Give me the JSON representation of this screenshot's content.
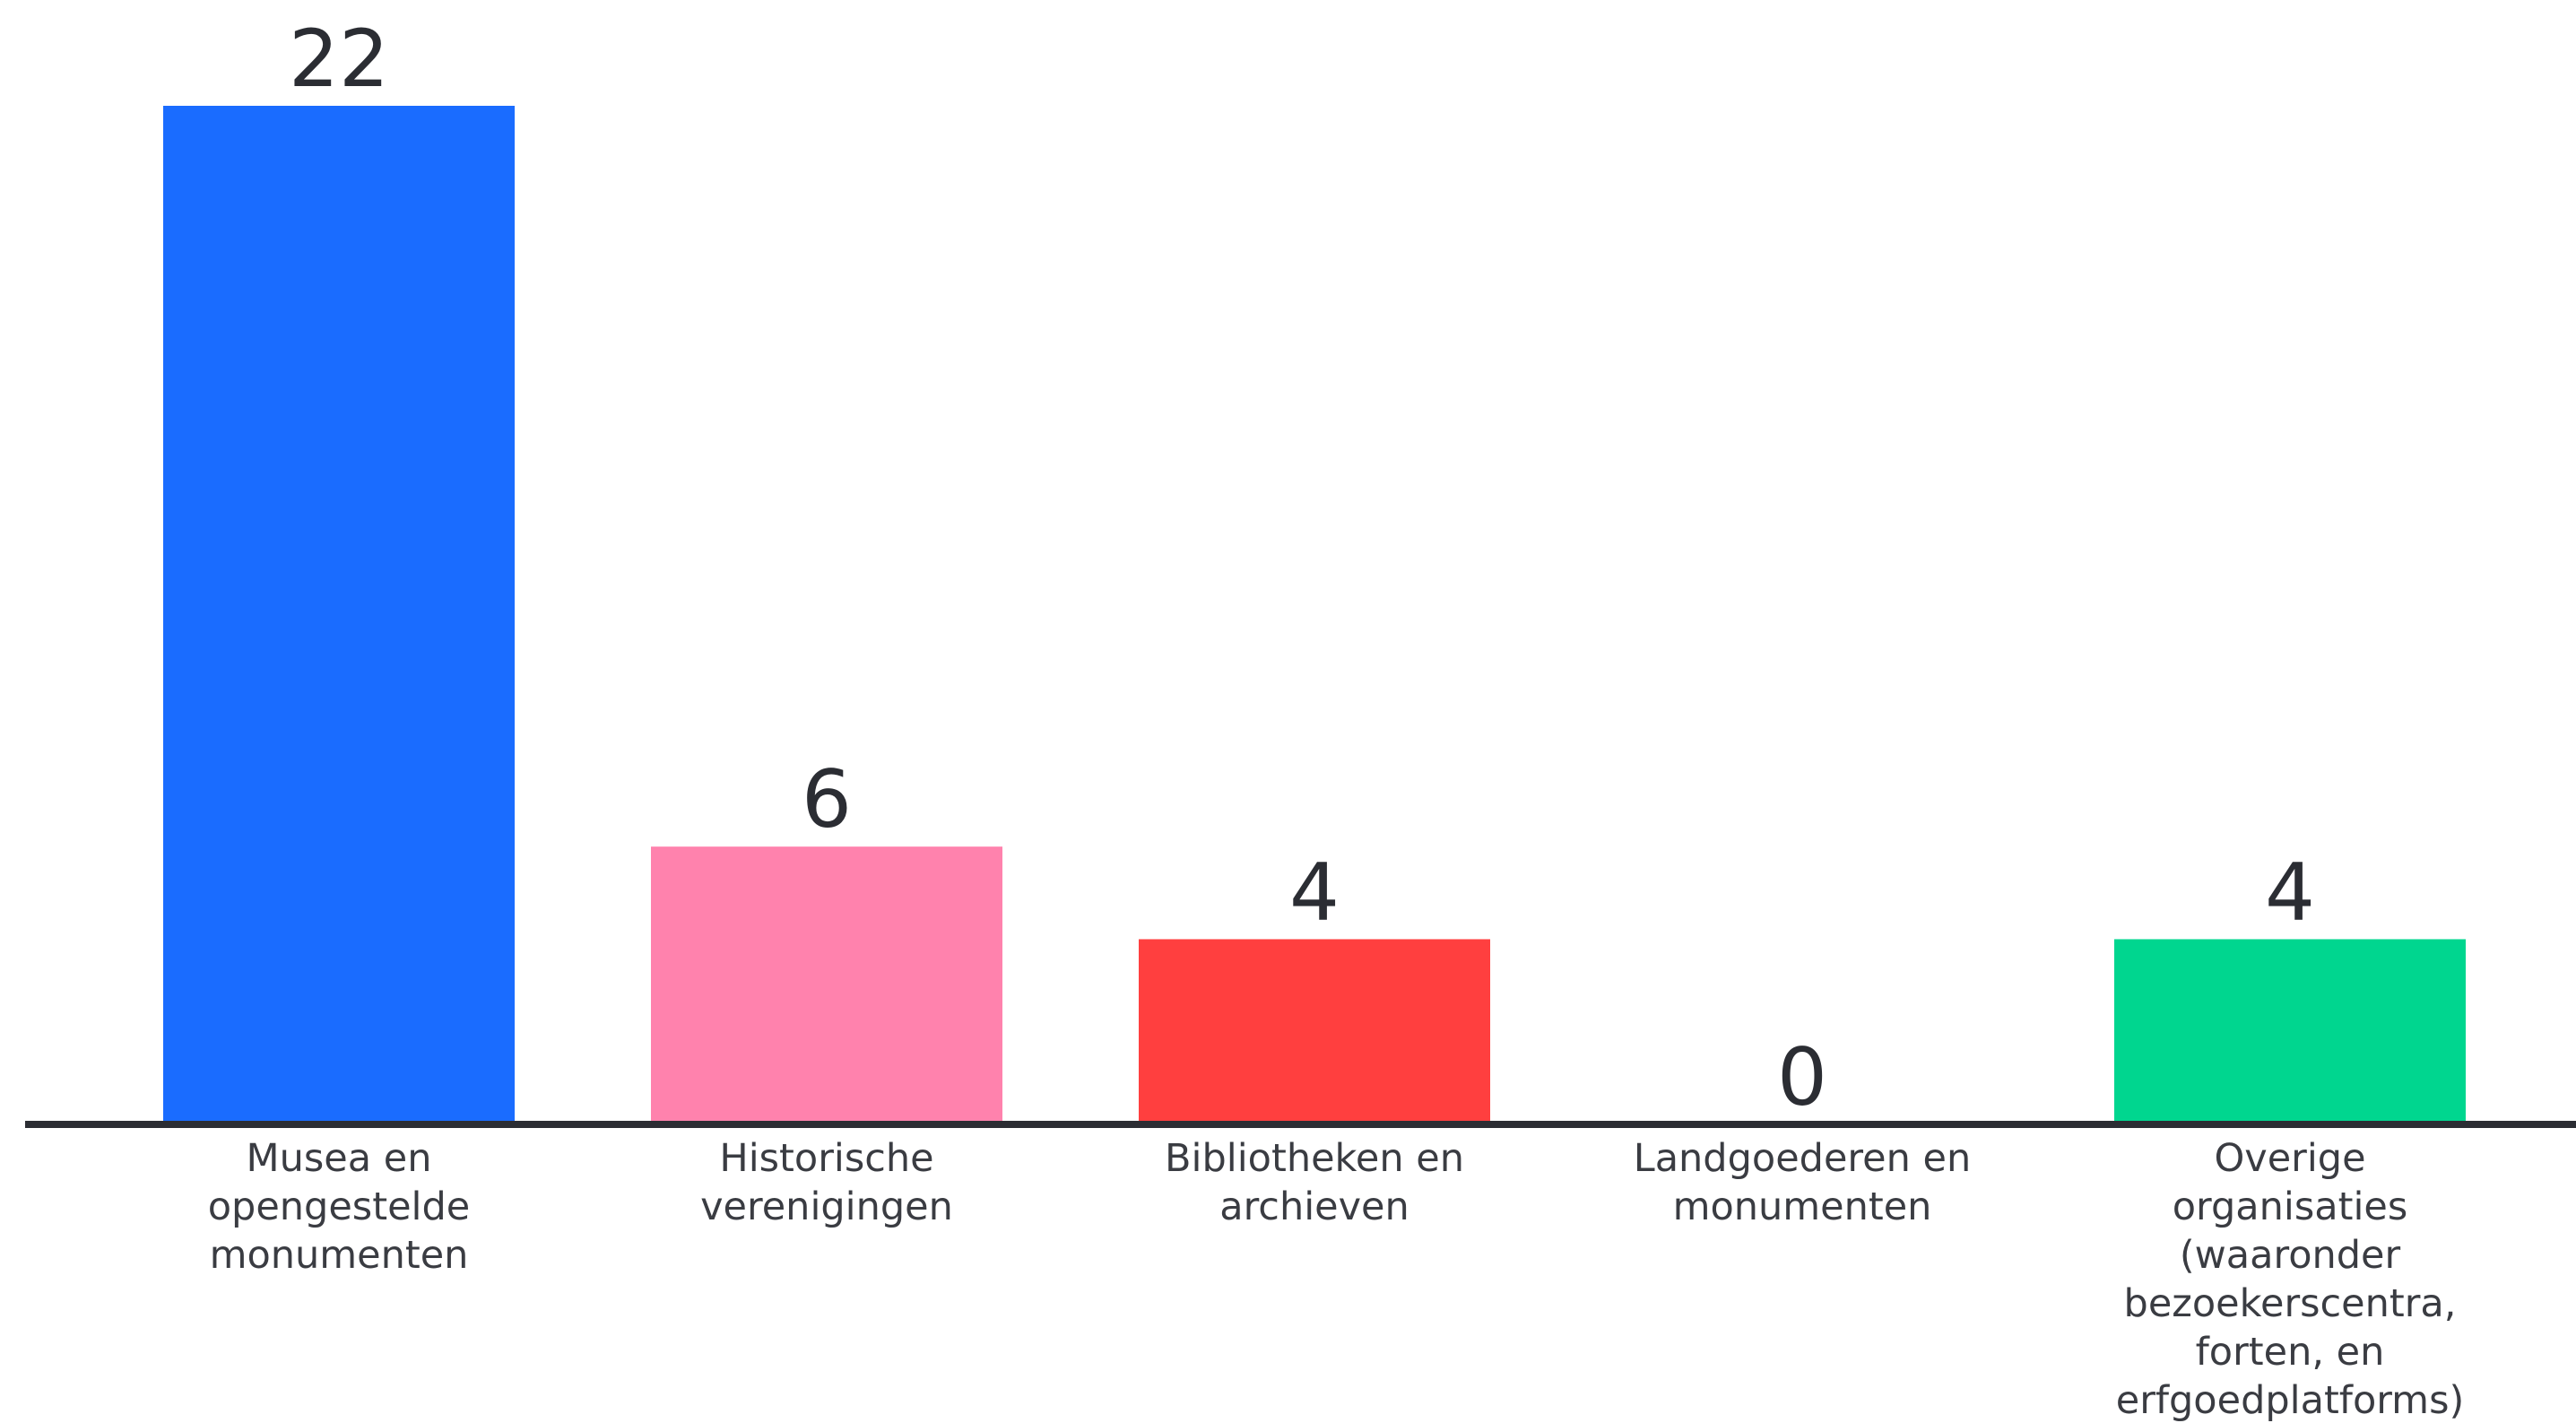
{
  "chart_data": {
    "type": "bar",
    "categories": [
      [
        "Musea en",
        "opengestelde",
        "monumenten"
      ],
      [
        "Historische",
        "verenigingen"
      ],
      [
        "Bibliotheken en",
        "archieven"
      ],
      [
        "Landgoederen en",
        "monumenten"
      ],
      [
        "Overige",
        "organisaties",
        "(waaronder",
        "bezoekerscentra,",
        "forten, en",
        "erfgoedplatforms)"
      ]
    ],
    "values": [
      22,
      6,
      4,
      0,
      4
    ],
    "colors": [
      "#1a6cff",
      "#ff82ad",
      "#ff3f3f",
      "#1a6cff",
      "#00d68f"
    ],
    "data_labels": [
      "22",
      "6",
      "4",
      "0",
      "4"
    ],
    "title": "",
    "xlabel": "",
    "ylabel": "",
    "ylim": [
      0,
      22
    ],
    "grid": false,
    "legend": "none",
    "axis_color": "#2b2d33"
  }
}
